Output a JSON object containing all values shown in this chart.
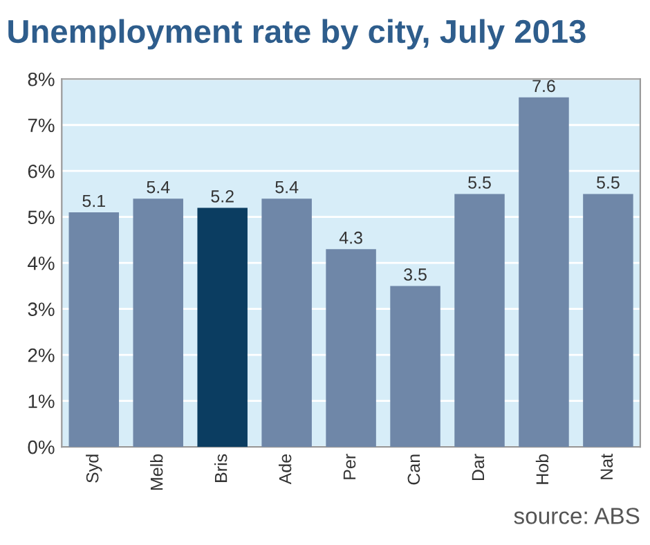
{
  "chart_data": {
    "type": "bar",
    "title": "Unemployment rate by city, July 2013",
    "categories": [
      "Syd",
      "Melb",
      "Bris",
      "Ade",
      "Per",
      "Can",
      "Dar",
      "Hob",
      "Nat"
    ],
    "values": [
      5.1,
      5.4,
      5.2,
      5.4,
      4.3,
      3.5,
      5.5,
      7.6,
      5.5
    ],
    "colors": [
      "#6f87a8",
      "#6f87a8",
      "#0b3d61",
      "#6f87a8",
      "#6f87a8",
      "#6f87a8",
      "#6f87a8",
      "#6f87a8",
      "#6f87a8"
    ],
    "ylim": [
      0,
      8
    ],
    "yticks": [
      {
        "value": 0,
        "label": "0%"
      },
      {
        "value": 1,
        "label": "1%"
      },
      {
        "value": 2,
        "label": "2%"
      },
      {
        "value": 3,
        "label": "3%"
      },
      {
        "value": 4,
        "label": "4%"
      },
      {
        "value": 5,
        "label": "5%"
      },
      {
        "value": 6,
        "label": "6%"
      },
      {
        "value": 7,
        "label": "7%"
      },
      {
        "value": 8,
        "label": "8%"
      }
    ],
    "grid": "y",
    "data_labels": true,
    "bands": [
      {
        "axis": "y",
        "from": 0,
        "to": 8,
        "color": "#d7edf8"
      }
    ],
    "annotations": [
      "source: ABS"
    ]
  }
}
